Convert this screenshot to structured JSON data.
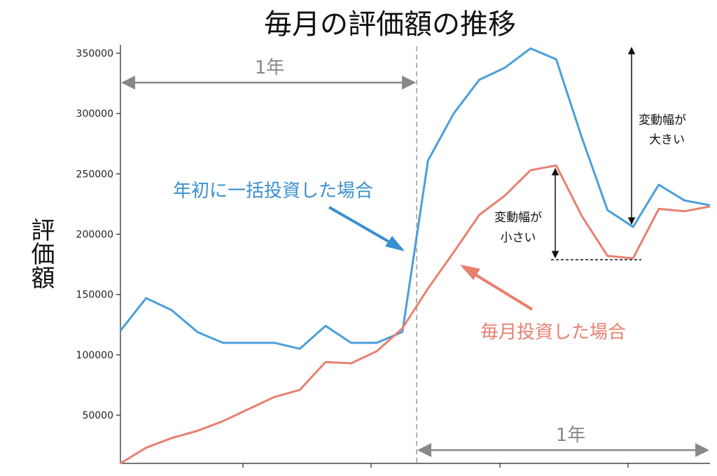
{
  "chart_data": {
    "type": "line",
    "title": "毎月の評価額の推移",
    "ylabel": "評価額",
    "xlabel": "",
    "ylim": [
      10000,
      357000
    ],
    "yticks": [
      50000,
      100000,
      150000,
      200000,
      250000,
      300000,
      350000
    ],
    "ytick_labels": [
      "50000",
      "100000",
      "150000",
      "200000",
      "250000",
      "300000",
      "350000"
    ],
    "x": [
      0,
      1,
      2,
      3,
      4,
      5,
      6,
      7,
      8,
      9,
      10,
      11,
      12,
      13,
      14,
      15,
      16,
      17,
      18,
      19,
      20,
      21,
      22,
      23
    ],
    "xlim": [
      0,
      23
    ],
    "series": [
      {
        "name": "年初に一括投資した場合",
        "color": "#4A9FDA",
        "values": [
          120000,
          147000,
          137000,
          119000,
          110000,
          110000,
          110000,
          105000,
          124000,
          110000,
          110000,
          119000,
          261000,
          300000,
          328000,
          338000,
          354000,
          345000,
          280000,
          220000,
          206000,
          241000,
          228000,
          224000
        ]
      },
      {
        "name": "毎月投資した場合",
        "color": "#E8806F",
        "values": [
          10000,
          23000,
          31000,
          37000,
          45000,
          55000,
          65000,
          71000,
          94000,
          93000,
          103000,
          122000,
          155000,
          185000,
          216000,
          232000,
          253000,
          257000,
          215000,
          182000,
          180000,
          221000,
          219000,
          223000
        ]
      }
    ],
    "annotations": {
      "one_year_left": "1年",
      "one_year_right": "1年",
      "lump_sum_label": "年初に一括投資した場合",
      "monthly_label": "毎月投資した場合",
      "large_range_line1": "変動幅が",
      "large_range_line2": "大きい",
      "small_range_line1": "変動幅が",
      "small_range_line2": "小さい"
    },
    "grid": false,
    "legend": "none"
  }
}
